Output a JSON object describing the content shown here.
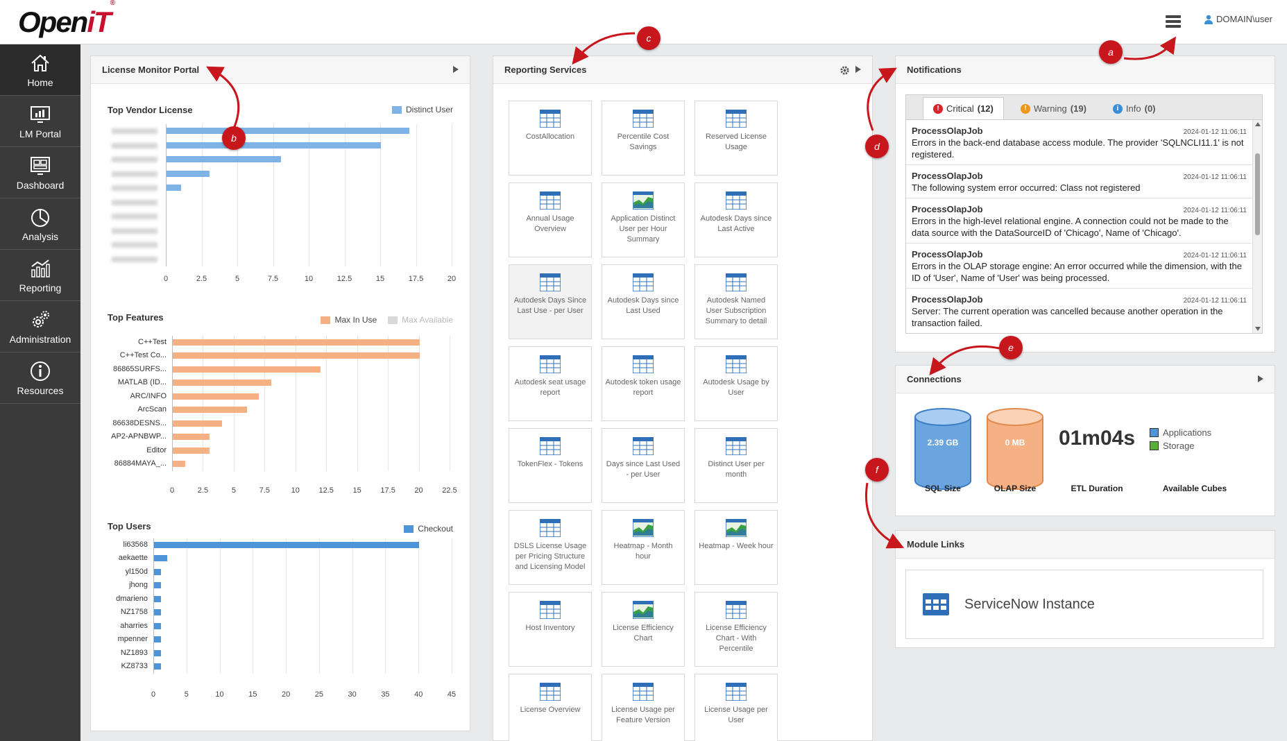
{
  "header": {
    "logo_main": "Open",
    "logo_accent": "iT",
    "logo_mark": "®",
    "menu_icon": "hamburger-icon",
    "user": "DOMAIN\\user"
  },
  "sidebar": {
    "items": [
      {
        "label": "Home",
        "icon": "home-icon",
        "active": true
      },
      {
        "label": "LM Portal",
        "icon": "monitor-chart-icon",
        "active": false
      },
      {
        "label": "Dashboard",
        "icon": "dashboard-icon",
        "active": false
      },
      {
        "label": "Analysis",
        "icon": "pie-icon",
        "active": false
      },
      {
        "label": "Reporting",
        "icon": "report-chart-icon",
        "active": false
      },
      {
        "label": "Administration",
        "icon": "gears-icon",
        "active": false
      },
      {
        "label": "Resources",
        "icon": "info-icon",
        "active": false
      }
    ]
  },
  "license_panel": {
    "title": "License Monitor Portal",
    "vendor_chart": {
      "title": "Top Vendor License",
      "legend": "Distinct User",
      "color": "#7fb3e6",
      "labels_blurred": true,
      "ticks": [
        "0",
        "2.5",
        "5",
        "7.5",
        "10",
        "12.5",
        "15",
        "17.5",
        "20"
      ],
      "xmax": 20,
      "values": [
        17,
        15,
        8,
        3,
        1,
        0,
        0,
        0,
        0,
        0
      ]
    },
    "features_chart": {
      "title": "Top Features",
      "legend": [
        "Max In Use",
        "Max Available"
      ],
      "colors": [
        "#f5b183",
        "#d9d9d9"
      ],
      "categories": [
        "C++Test",
        "C++Test Co...",
        "86865SURFS...",
        "MATLAB (ID...",
        "ARC/INFO",
        "ArcScan",
        "86638DESNS...",
        "AP2-APNBWP...",
        "Editor",
        "86884MAYA_..."
      ],
      "ticks": [
        "0",
        "2.5",
        "5",
        "7.5",
        "10",
        "12.5",
        "15",
        "17.5",
        "20",
        "22.5"
      ],
      "xmax": 22.5,
      "values": [
        20,
        20,
        12,
        8,
        7,
        6,
        4,
        3,
        3,
        1
      ]
    },
    "users_chart": {
      "title": "Top Users",
      "legend": "Checkout",
      "color": "#4d94d9",
      "categories": [
        "li63568",
        "aekaette",
        "yl150d",
        "jhong",
        "dmarieno",
        "NZ1758",
        "aharries",
        "mpenner",
        "NZ1893",
        "KZ8733"
      ],
      "ticks": [
        "0",
        "5",
        "10",
        "15",
        "20",
        "25",
        "30",
        "35",
        "40",
        "45"
      ],
      "xmax": 45,
      "values": [
        40,
        2,
        1,
        1,
        1,
        1,
        1,
        1,
        1,
        1
      ]
    }
  },
  "reporting_panel": {
    "title": "Reporting Services",
    "settings_icon": "gear-icon",
    "tiles": [
      {
        "label": "CostAllocation",
        "icon": "table-icon"
      },
      {
        "label": "Percentile Cost Savings",
        "icon": "table-icon"
      },
      {
        "label": "Reserved License Usage",
        "icon": "table-icon"
      },
      {
        "label": "Annual Usage Overview",
        "icon": "table-icon"
      },
      {
        "label": "Application Distinct User per Hour Summary",
        "icon": "chart-icon"
      },
      {
        "label": "Autodesk Days since Last Active",
        "icon": "table-icon"
      },
      {
        "label": "Autodesk Days Since Last Use - per User",
        "icon": "table-icon"
      },
      {
        "label": "Autodesk Days since Last Used",
        "icon": "table-icon"
      },
      {
        "label": "Autodesk Named User Subscription Summary to detail",
        "icon": "table-icon"
      },
      {
        "label": "Autodesk seat usage report",
        "icon": "table-icon"
      },
      {
        "label": "Autodesk token usage report",
        "icon": "table-icon"
      },
      {
        "label": "Autodesk Usage by User",
        "icon": "table-icon"
      },
      {
        "label": "TokenFlex - Tokens",
        "icon": "table-icon"
      },
      {
        "label": "Days since Last Used - per User",
        "icon": "table-icon"
      },
      {
        "label": "Distinct User per month",
        "icon": "table-icon"
      },
      {
        "label": "DSLS License Usage per Pricing Structure and Licensing Model",
        "icon": "table-icon"
      },
      {
        "label": "Heatmap - Month hour",
        "icon": "chart-icon"
      },
      {
        "label": "Heatmap - Week hour",
        "icon": "chart-icon"
      },
      {
        "label": "Host Inventory",
        "icon": "table-icon"
      },
      {
        "label": "License Efficiency Chart",
        "icon": "chart-icon"
      },
      {
        "label": "License Efficiency Chart - With Percentile",
        "icon": "table-icon"
      },
      {
        "label": "License Overview",
        "icon": "table-icon"
      },
      {
        "label": "License Usage per Feature Version",
        "icon": "table-icon"
      },
      {
        "label": "License Usage per User",
        "icon": "table-icon"
      }
    ]
  },
  "notifications_panel": {
    "title": "Notifications",
    "tabs": [
      {
        "label": "Critical",
        "count": "(12)",
        "color": "#d9232d",
        "glyph": "!"
      },
      {
        "label": "Warning",
        "count": "(19)",
        "color": "#f0961e",
        "glyph": "!"
      },
      {
        "label": "Info",
        "count": "(0)",
        "color": "#3a8fd6",
        "glyph": "i"
      }
    ],
    "items": [
      {
        "title": "ProcessOlapJob",
        "date": "2024-01-12 11:06:11",
        "text": "Errors in the back-end database access module. The provider 'SQLNCLI11.1' is not registered."
      },
      {
        "title": "ProcessOlapJob",
        "date": "2024-01-12 11:06:11",
        "text": "The following system error occurred: Class not registered"
      },
      {
        "title": "ProcessOlapJob",
        "date": "2024-01-12 11:06:11",
        "text": "Errors in the high-level relational engine. A connection could not be made to the data source with the DataSourceID of 'Chicago', Name of 'Chicago'."
      },
      {
        "title": "ProcessOlapJob",
        "date": "2024-01-12 11:06:11",
        "text": "Errors in the OLAP storage engine: An error occurred while the dimension, with the ID of 'User', Name of 'User' was being processed."
      },
      {
        "title": "ProcessOlapJob",
        "date": "2024-01-12 11:06:11",
        "text": "Server: The current operation was cancelled because another operation in the transaction failed."
      }
    ]
  },
  "connections_panel": {
    "title": "Connections",
    "sql_value": "2.39 GB",
    "sql_label": "SQL Size",
    "olap_value": "0 MB",
    "olap_label": "OLAP Size",
    "etl_value": "01m04s",
    "etl_label": "ETL Duration",
    "legend": [
      {
        "label": "Applications",
        "color": "#4d94d9"
      },
      {
        "label": "Storage",
        "color": "#5cae3c"
      }
    ],
    "cubes_label": "Available Cubes"
  },
  "module_links_panel": {
    "title": "Module Links",
    "link_label": "ServiceNow Instance",
    "link_icon": "grid-table-icon"
  },
  "markers": [
    "a",
    "b",
    "c",
    "d",
    "e",
    "f"
  ]
}
